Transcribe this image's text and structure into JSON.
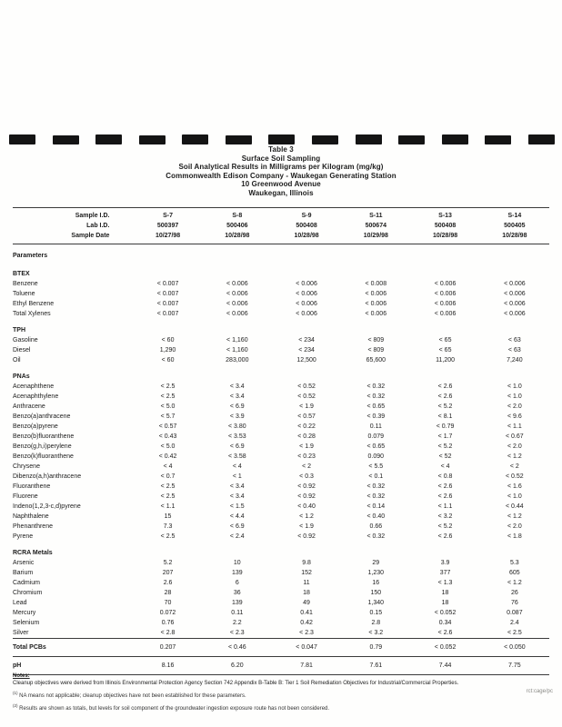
{
  "title_block": {
    "lines": [
      "Table 3",
      "Surface Soil Sampling",
      "Soil Analytical Results in Milligrams per Kilogram (mg/kg)",
      "Commonwealth Edison Company - Waukegan Generating Station",
      "10 Greenwood Avenue",
      "Waukegan, Illinois"
    ]
  },
  "header": {
    "rows": [
      {
        "label": "Sample I.D.",
        "values": [
          "S-7",
          "S-8",
          "S-9",
          "S-11",
          "S-13",
          "S-14"
        ]
      },
      {
        "label": "Lab I.D.",
        "values": [
          "500397",
          "500406",
          "500408",
          "500674",
          "500408",
          "500405"
        ]
      },
      {
        "label": "Sample Date",
        "values": [
          "10/27/98",
          "10/28/98",
          "10/28/98",
          "10/29/98",
          "10/28/98",
          "10/28/98"
        ]
      }
    ]
  },
  "parameters_label": "Parameters",
  "sections": [
    {
      "name": "BTEX",
      "rows": [
        {
          "label": "Benzene",
          "values": [
            "< 0.007",
            "< 0.006",
            "< 0.006",
            "< 0.008",
            "< 0.006",
            "< 0.006"
          ]
        },
        {
          "label": "Toluene",
          "values": [
            "< 0.007",
            "< 0.006",
            "< 0.006",
            "< 0.006",
            "< 0.006",
            "< 0.006"
          ]
        },
        {
          "label": "Ethyl Benzene",
          "values": [
            "< 0.007",
            "< 0.006",
            "< 0.006",
            "< 0.006",
            "< 0.006",
            "< 0.006"
          ]
        },
        {
          "label": "Total Xylenes",
          "values": [
            "< 0.007",
            "< 0.006",
            "< 0.006",
            "< 0.006",
            "< 0.006",
            "< 0.006"
          ]
        }
      ]
    },
    {
      "name": "TPH",
      "rows": [
        {
          "label": "Gasoline",
          "values": [
            "< 60",
            "< 1,160",
            "< 234",
            "< 809",
            "< 65",
            "< 63"
          ]
        },
        {
          "label": "Diesel",
          "values": [
            "1,290",
            "< 1,160",
            "< 234",
            "< 809",
            "< 65",
            "< 63"
          ]
        },
        {
          "label": "Oil",
          "values": [
            "< 60",
            "283,000",
            "12,500",
            "65,600",
            "11,200",
            "7,240"
          ]
        }
      ]
    },
    {
      "name": "PNAs",
      "rows": [
        {
          "label": "Acenaphthene",
          "values": [
            "< 2.5",
            "< 3.4",
            "< 0.52",
            "< 0.32",
            "< 2.6",
            "< 1.0"
          ]
        },
        {
          "label": "Acenaphthylene",
          "values": [
            "< 2.5",
            "< 3.4",
            "< 0.52",
            "< 0.32",
            "< 2.6",
            "< 1.0"
          ]
        },
        {
          "label": "Anthracene",
          "values": [
            "< 5.0",
            "< 6.9",
            "< 1.9",
            "< 0.65",
            "< 5.2",
            "< 2.0"
          ]
        },
        {
          "label": "Benzo(a)anthracene",
          "values": [
            "< 5.7",
            "< 3.9",
            "< 0.57",
            "< 0.39",
            "< 8.1",
            "< 9.6"
          ]
        },
        {
          "label": "Benzo(a)pyrene",
          "values": [
            "< 0.57",
            "< 3.80",
            "< 0.22",
            "0.11",
            "< 0.79",
            "< 1.1"
          ]
        },
        {
          "label": "Benzo(b)fluoranthene",
          "values": [
            "< 0.43",
            "< 3.53",
            "< 0.28",
            "0.079",
            "< 1.7",
            "< 0.67"
          ]
        },
        {
          "label": "Benzo(g,h,i)perylene",
          "values": [
            "< 5.0",
            "< 6.9",
            "< 1.9",
            "< 0.65",
            "< 5.2",
            "< 2.0"
          ]
        },
        {
          "label": "Benzo(k)fluoranthene",
          "values": [
            "< 0.42",
            "< 3.58",
            "< 0.23",
            "0.090",
            "< 52",
            "< 1.2"
          ]
        },
        {
          "label": "Chrysene",
          "values": [
            "< 4",
            "< 4",
            "< 2",
            "< 5.5",
            "< 4",
            "< 2"
          ]
        },
        {
          "label": "Dibenzo(a,h)anthracene",
          "values": [
            "< 0.7",
            "< 1",
            "< 0.3",
            "< 0.1",
            "< 0.8",
            "< 0.52"
          ]
        },
        {
          "label": "Fluoranthene",
          "values": [
            "< 2.5",
            "< 3.4",
            "< 0.92",
            "< 0.32",
            "< 2.6",
            "< 1.6"
          ]
        },
        {
          "label": "Fluorene",
          "values": [
            "< 2.5",
            "< 3.4",
            "< 0.92",
            "< 0.32",
            "< 2.6",
            "< 1.0"
          ]
        },
        {
          "label": "Indeno(1,2,3-c,d)pyrene",
          "values": [
            "< 1.1",
            "< 1.5",
            "< 0.40",
            "< 0.14",
            "< 1.1",
            "< 0.44"
          ]
        },
        {
          "label": "Naphthalene",
          "values": [
            "15",
            "< 4.4",
            "< 1.2",
            "< 0.40",
            "< 3.2",
            "< 1.2"
          ]
        },
        {
          "label": "Phenanthrene",
          "values": [
            "7.3",
            "< 6.9",
            "< 1.9",
            "0.66",
            "< 5.2",
            "< 2.0"
          ]
        },
        {
          "label": "Pyrene",
          "values": [
            "< 2.5",
            "< 2.4",
            "< 0.92",
            "< 0.32",
            "< 2.6",
            "< 1.8"
          ]
        }
      ]
    },
    {
      "name": "RCRA Metals",
      "rows": [
        {
          "label": "Arsenic",
          "values": [
            "5.2",
            "10",
            "9.8",
            "29",
            "3.9",
            "5.3"
          ]
        },
        {
          "label": "Barium",
          "values": [
            "207",
            "139",
            "152",
            "1,230",
            "377",
            "605"
          ]
        },
        {
          "label": "Cadmium",
          "values": [
            "2.6",
            "6",
            "11",
            "16",
            "< 1.3",
            "< 1.2"
          ]
        },
        {
          "label": "Chromium",
          "values": [
            "28",
            "36",
            "18",
            "150",
            "18",
            "26"
          ]
        },
        {
          "label": "Lead",
          "values": [
            "70",
            "139",
            "49",
            "1,340",
            "18",
            "76"
          ]
        },
        {
          "label": "Mercury",
          "values": [
            "0.072",
            "0.11",
            "0.41",
            "0.15",
            "< 0.052",
            "0.087"
          ]
        },
        {
          "label": "Selenium",
          "values": [
            "0.76",
            "2.2",
            "0.42",
            "2.8",
            "0.34",
            "2.4"
          ]
        },
        {
          "label": "Silver",
          "values": [
            "< 2.8",
            "< 2.3",
            "< 2.3",
            "< 3.2",
            "< 2.6",
            "< 2.5"
          ]
        }
      ]
    }
  ],
  "summary_rows": [
    {
      "label": "Total PCBs",
      "values": [
        "0.207",
        "< 0.46",
        "< 0.047",
        "0.79",
        "< 0.052",
        "< 0.050"
      ]
    },
    {
      "label": "pH",
      "values": [
        "8.16",
        "6.20",
        "7.81",
        "7.61",
        "7.44",
        "7.75"
      ]
    }
  ],
  "notes": {
    "heading": "Notes:",
    "body": "Cleanup objectives were derived from Illinois Environmental Protection Agency Section 742 Appendix B-Table B: Tier 1 Soil Remediation Objectives for Industrial/Commercial Properties.",
    "footnote1_marker": "(1)",
    "footnote1_text": "NA means not applicable; cleanup objectives have not been established for these parameters.",
    "footnote2_marker": "(2)",
    "footnote2_text": "Results are shown as totals, but levels for soil component of the groundwater ingestion exposure route has not been considered."
  },
  "footer_code": "rct:cage/pc"
}
